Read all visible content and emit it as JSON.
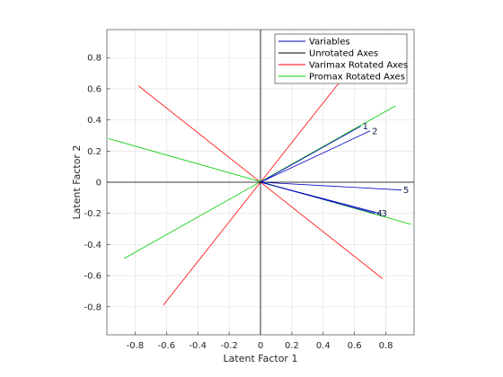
{
  "chart_data": {
    "type": "line",
    "xlabel": "Latent Factor 1",
    "ylabel": "Latent Factor 2",
    "xlim": [
      -0.98,
      0.98
    ],
    "ylim": [
      -0.98,
      0.98
    ],
    "grid": true,
    "legend_placement": "top-right",
    "xticks": [
      -0.8,
      -0.6,
      -0.4,
      -0.2,
      0,
      0.2,
      0.4,
      0.6,
      0.8
    ],
    "yticks": [
      -0.8,
      -0.6,
      -0.4,
      -0.2,
      0,
      0.2,
      0.4,
      0.6,
      0.8
    ],
    "tick_labels": [
      "-0.8",
      "-0.6",
      "-0.4",
      "-0.2",
      "0",
      "0.2",
      "0.4",
      "0.6",
      "0.8"
    ],
    "legend": [
      {
        "label": "Variables",
        "color": "#0000bf"
      },
      {
        "label": "Unrotated Axes",
        "color": "#000000"
      },
      {
        "label": "Varimax Rotated Axes",
        "color": "#ff0000"
      },
      {
        "label": "Promax Rotated Axes",
        "color": "#00cc00"
      }
    ],
    "unrotated_axes": [
      {
        "x1": -0.98,
        "y1": 0,
        "x2": 0.98,
        "y2": 0
      },
      {
        "x1": 0,
        "y1": -0.98,
        "x2": 0,
        "y2": 0.98
      }
    ],
    "varimax_axes": [
      {
        "x1": -0.78,
        "y1": 0.62,
        "x2": 0.78,
        "y2": -0.62
      },
      {
        "x1": -0.62,
        "y1": -0.79,
        "x2": 0.62,
        "y2": 0.79
      }
    ],
    "promax_axes": [
      {
        "x1": -0.97,
        "y1": 0.28,
        "x2": 0.96,
        "y2": -0.27
      },
      {
        "x1": -0.87,
        "y1": -0.49,
        "x2": 0.86,
        "y2": 0.49
      }
    ],
    "variables": [
      {
        "label": "1",
        "x": 0.64,
        "y": 0.36
      },
      {
        "label": "2",
        "x": 0.7,
        "y": 0.33
      },
      {
        "label": "3",
        "x": 0.76,
        "y": -0.2
      },
      {
        "label": "4",
        "x": 0.73,
        "y": -0.2
      },
      {
        "label": "5",
        "x": 0.9,
        "y": -0.05
      }
    ]
  }
}
